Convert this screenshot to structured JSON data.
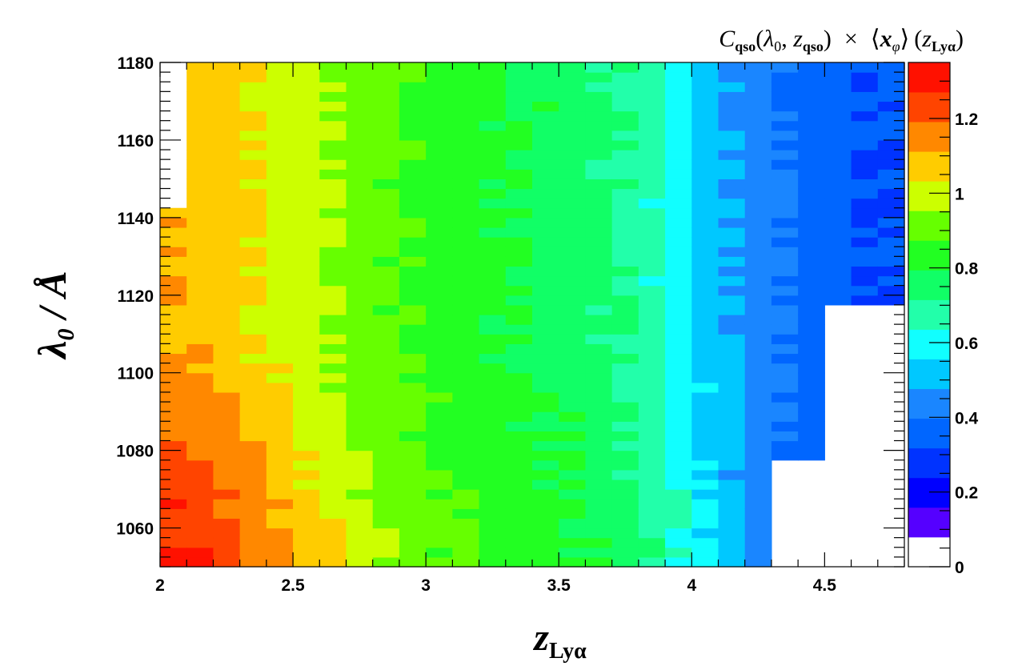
{
  "chart_data": {
    "type": "heatmap",
    "title": "C_qso(λ0, z_qso) × ⟨x_φ⟩ (z_Lyα)",
    "title_parts": {
      "c": "C",
      "c_sub": "qso",
      "args_open": "(",
      "lambda": "λ",
      "lambda_sub": "0",
      "comma": ", ",
      "z": "z",
      "z_sub": "qso",
      "args_close": ")",
      "times": "×",
      "lang": "⟨",
      "x": "x",
      "x_sub": "φ",
      "rang": "⟩",
      "paren_open": "(",
      "z2": "z",
      "z2_sub": "Lyα",
      "paren_close": ")"
    },
    "xlabel": "z_Lyα",
    "xlabel_main": "z",
    "xlabel_sub": "Lyα",
    "ylabel": "λ0 / Å",
    "ylabel_main": "λ",
    "ylabel_sub": "0",
    "ylabel_unit": " / Å",
    "xlim": [
      2.0,
      4.8
    ],
    "ylim": [
      1050,
      1180
    ],
    "x_ticks": [
      "2",
      "2.5",
      "3",
      "3.5",
      "4",
      "4.5"
    ],
    "x_tick_values": [
      2.0,
      2.5,
      3.0,
      3.5,
      4.0,
      4.5
    ],
    "y_ticks": [
      "1060",
      "1080",
      "1100",
      "1120",
      "1140",
      "1160",
      "1180"
    ],
    "y_tick_values": [
      1060,
      1080,
      1100,
      1120,
      1140,
      1160,
      1180
    ],
    "x_bin_edges": [
      2.0,
      2.1,
      2.2,
      2.3,
      2.4,
      2.5,
      2.6,
      2.7,
      2.8,
      2.9,
      3.0,
      3.1,
      3.2,
      3.3,
      3.4,
      3.5,
      3.6,
      3.7,
      3.8,
      3.9,
      4.0,
      4.1,
      4.2,
      4.3,
      4.4,
      4.5,
      4.6,
      4.7,
      4.8
    ],
    "y_bin_width": 2.5,
    "coverage": {
      "note": "Values exist only where data bins are drawn",
      "regions": [
        {
          "x_range": [
            2.0,
            2.1
          ],
          "y_range": [
            1050,
            1142.5
          ]
        },
        {
          "x_range": [
            2.1,
            4.3
          ],
          "y_range": [
            1050,
            1180
          ]
        },
        {
          "x_range": [
            4.3,
            4.5
          ],
          "y_range": [
            1077.5,
            1180
          ]
        },
        {
          "x_range": [
            4.5,
            4.8
          ],
          "y_range": [
            1117.5,
            1180
          ]
        }
      ]
    },
    "value_profile": {
      "x": [
        2.0,
        2.2,
        2.4,
        2.6,
        2.8,
        3.0,
        3.2,
        3.4,
        3.6,
        3.8,
        4.0,
        4.2,
        4.4,
        4.65
      ],
      "low_lambda": [
        1.32,
        1.26,
        1.15,
        1.05,
        0.95,
        0.88,
        0.83,
        0.8,
        0.76,
        0.7,
        0.55,
        0.42,
        0.35,
        0.27
      ],
      "high_lambda": [
        1.1,
        1.06,
        1.0,
        0.94,
        0.87,
        0.82,
        0.78,
        0.75,
        0.71,
        0.64,
        0.5,
        0.4,
        0.32,
        0.25
      ]
    },
    "colorbar": {
      "range": [
        0,
        1.35
      ],
      "levels": 15,
      "ticks": [
        "0",
        "0.2",
        "0.4",
        "0.6",
        "0.8",
        "1",
        "1.2"
      ],
      "tick_values": [
        0,
        0.2,
        0.4,
        0.6,
        0.8,
        1.0,
        1.2
      ],
      "colors": [
        "#ffffff",
        "#5500ff",
        "#0000ff",
        "#0033ff",
        "#0066ff",
        "#1a86ff",
        "#00c8ff",
        "#11ffff",
        "#22ffaa",
        "#11ff66",
        "#22ff22",
        "#66ff00",
        "#ccff00",
        "#ffcc00",
        "#ff8800",
        "#ff4400",
        "#ff1100"
      ]
    },
    "grid": false,
    "legend": "colorbar-right"
  }
}
